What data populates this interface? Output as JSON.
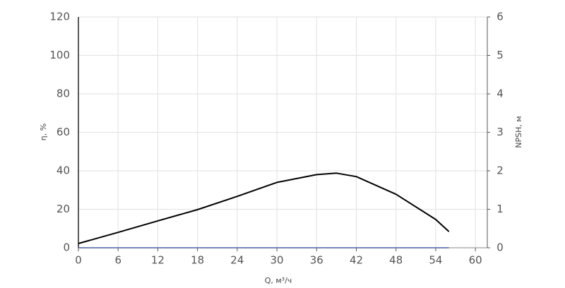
{
  "chart_data": {
    "type": "line",
    "xlabel": "Q, м³/ч",
    "ylabel": "η, %",
    "y2label": "NPSH, м",
    "x": [
      0,
      6,
      12,
      18,
      24,
      30,
      36,
      39,
      42,
      48,
      54,
      56
    ],
    "series": [
      {
        "color": "#000000",
        "values": [
          2.2,
          8,
          14,
          19.8,
          26.7,
          34,
          38,
          38.8,
          37,
          27.8,
          14.7,
          8.4
        ]
      },
      {
        "color": "#4a5fa8",
        "axis": "y2",
        "x": [
          0,
          56
        ],
        "values": [
          0,
          0
        ]
      }
    ],
    "xlim": [
      0,
      61.8
    ],
    "xticks": [
      0,
      6,
      12,
      18,
      24,
      30,
      36,
      42,
      48,
      54,
      60
    ],
    "ylim": [
      0,
      120
    ],
    "yticks": [
      0,
      20,
      40,
      60,
      80,
      100,
      120
    ],
    "y2lim": [
      0,
      6
    ],
    "y2ticks": [
      0,
      1,
      2,
      3,
      4,
      5,
      6
    ],
    "grid": true
  }
}
